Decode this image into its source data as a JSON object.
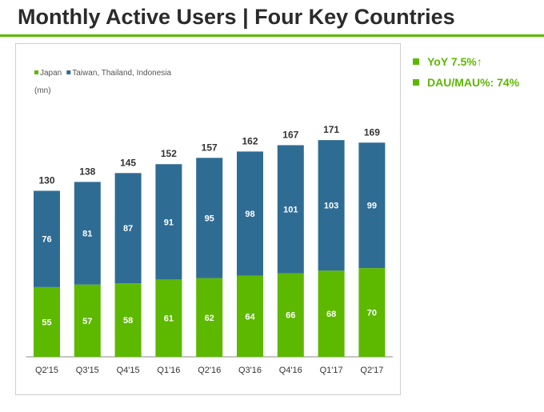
{
  "title": "Monthly Active Users | Four Key Countries",
  "side_notes": [
    "YoY 7.5%↑",
    "DAU/MAU%: 74%"
  ],
  "colors": {
    "japan": "#5db800",
    "others": "#2f6c93",
    "accent": "#5db800"
  },
  "chart_data": {
    "type": "bar",
    "stacked": true,
    "unit_label": "(mn)",
    "categories": [
      "Q2'15",
      "Q3'15",
      "Q4'15",
      "Q1'16",
      "Q2'16",
      "Q3'16",
      "Q4'16",
      "Q1'17",
      "Q2'17"
    ],
    "series": [
      {
        "name": "Japan",
        "color": "#5db800",
        "values": [
          55,
          57,
          58,
          61,
          62,
          64,
          66,
          68,
          70
        ]
      },
      {
        "name": "Taiwan, Thailand, Indonesia",
        "color": "#2f6c93",
        "values": [
          76,
          81,
          87,
          91,
          95,
          98,
          101,
          103,
          99
        ]
      }
    ],
    "totals": [
      130,
      138,
      145,
      152,
      157,
      162,
      167,
      171,
      169
    ],
    "ylim": [
      0,
      190
    ],
    "legend_position": "top-left",
    "grid": false
  }
}
